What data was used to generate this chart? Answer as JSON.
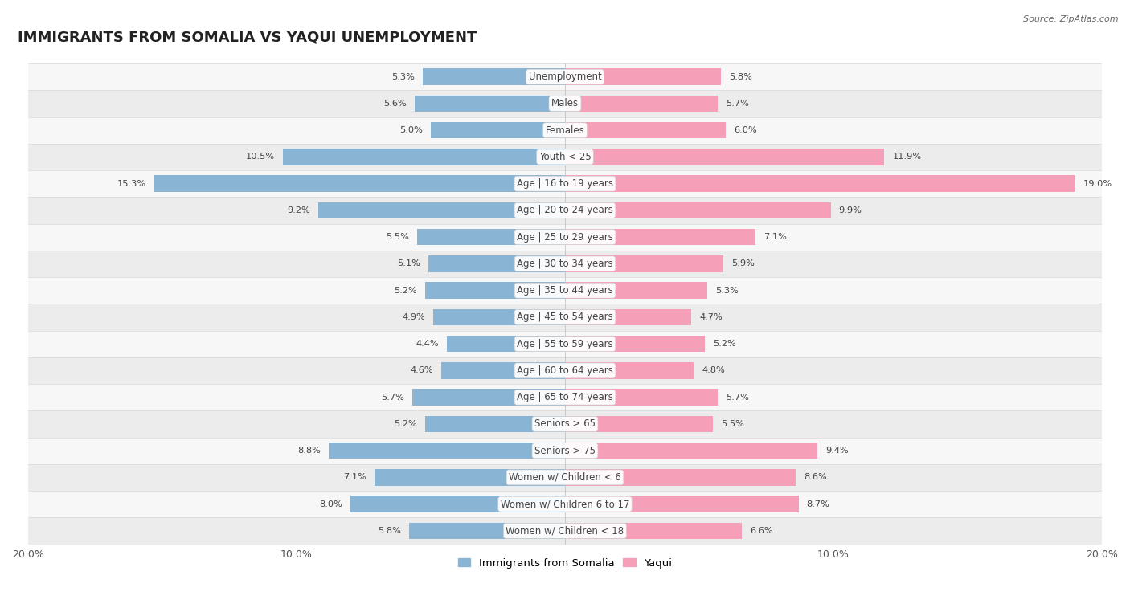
{
  "title": "IMMIGRANTS FROM SOMALIA VS YAQUI UNEMPLOYMENT",
  "source": "Source: ZipAtlas.com",
  "categories": [
    "Unemployment",
    "Males",
    "Females",
    "Youth < 25",
    "Age | 16 to 19 years",
    "Age | 20 to 24 years",
    "Age | 25 to 29 years",
    "Age | 30 to 34 years",
    "Age | 35 to 44 years",
    "Age | 45 to 54 years",
    "Age | 55 to 59 years",
    "Age | 60 to 64 years",
    "Age | 65 to 74 years",
    "Seniors > 65",
    "Seniors > 75",
    "Women w/ Children < 6",
    "Women w/ Children 6 to 17",
    "Women w/ Children < 18"
  ],
  "somalia_values": [
    5.3,
    5.6,
    5.0,
    10.5,
    15.3,
    9.2,
    5.5,
    5.1,
    5.2,
    4.9,
    4.4,
    4.6,
    5.7,
    5.2,
    8.8,
    7.1,
    8.0,
    5.8
  ],
  "yaqui_values": [
    5.8,
    5.7,
    6.0,
    11.9,
    19.0,
    9.9,
    7.1,
    5.9,
    5.3,
    4.7,
    5.2,
    4.8,
    5.7,
    5.5,
    9.4,
    8.6,
    8.7,
    6.6
  ],
  "somalia_color": "#8ab4d4",
  "yaqui_color": "#f5a0b8",
  "row_colors": [
    "#f7f7f7",
    "#ececec"
  ],
  "fig_bg": "#ffffff",
  "axis_max": 20.0,
  "bar_height": 0.62,
  "title_fontsize": 13,
  "label_fontsize": 8.5,
  "value_fontsize": 8.2,
  "legend_fontsize": 9.5,
  "tick_fontsize": 9.0
}
